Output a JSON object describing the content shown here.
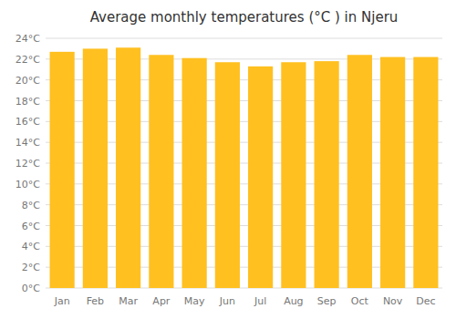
{
  "chart_data": {
    "type": "bar",
    "title": "Average monthly temperatures (°C ) in Njeru",
    "categories": [
      "Jan",
      "Feb",
      "Mar",
      "Apr",
      "May",
      "Jun",
      "Jul",
      "Aug",
      "Sep",
      "Oct",
      "Nov",
      "Dec"
    ],
    "values": [
      22.7,
      23.0,
      23.1,
      22.4,
      22.1,
      21.7,
      21.3,
      21.7,
      21.8,
      22.4,
      22.2,
      22.2
    ],
    "color": "#FFC020",
    "ylim": [
      0,
      24
    ],
    "yticks": [
      {
        "value": 0,
        "label": "0°C"
      },
      {
        "value": 2,
        "label": "2°C"
      },
      {
        "value": 4,
        "label": "4°C"
      },
      {
        "value": 6,
        "label": "6°C"
      },
      {
        "value": 8,
        "label": "8°C"
      },
      {
        "value": 10,
        "label": "10°C"
      },
      {
        "value": 12,
        "label": "12°C"
      },
      {
        "value": 14,
        "label": "14°C"
      },
      {
        "value": 16,
        "label": "16°C"
      },
      {
        "value": 18,
        "label": "18°C"
      },
      {
        "value": 20,
        "label": "20°C"
      },
      {
        "value": 22,
        "label": "22°C"
      },
      {
        "value": 24,
        "label": "24°C"
      }
    ],
    "grid": true
  }
}
